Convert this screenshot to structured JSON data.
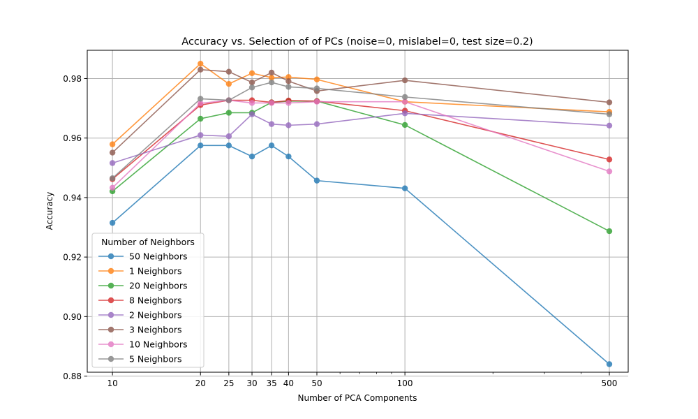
{
  "chart_data": {
    "type": "line",
    "title": "Accuracy vs. Selection of of PCs (noise=0, mislabel=0, test size=0.2)",
    "xlabel": "Number of PCA Components",
    "ylabel": "Accuracy",
    "x_scale": "log",
    "xlim": [
      8.2,
      580
    ],
    "ylim": [
      0.8813,
      0.9895
    ],
    "x_ticks": [
      10,
      20,
      25,
      30,
      35,
      40,
      50,
      100,
      500
    ],
    "x_tick_labels": [
      "10",
      "20",
      "25",
      "30",
      "35",
      "40",
      "50",
      "100",
      "500"
    ],
    "y_ticks": [
      0.88,
      0.9,
      0.92,
      0.94,
      0.96,
      0.98
    ],
    "y_tick_labels": [
      "0.88",
      "0.90",
      "0.92",
      "0.94",
      "0.96",
      "0.98"
    ],
    "grid": true,
    "legend_title": "Number of Neighbors",
    "legend_position": "lower-left",
    "x": [
      10,
      20,
      25,
      30,
      35,
      40,
      50,
      100,
      500
    ],
    "series": [
      {
        "name": "50 Neighbors",
        "color": "#1f77b4",
        "values": [
          0.9315,
          0.9575,
          0.9575,
          0.9538,
          0.9575,
          0.9538,
          0.9457,
          0.9431,
          0.884
        ]
      },
      {
        "name": "1 Neighbors",
        "color": "#ff7f0e",
        "values": [
          0.9579,
          0.985,
          0.9782,
          0.9818,
          0.9803,
          0.9805,
          0.9797,
          0.9722,
          0.9688
        ]
      },
      {
        "name": "20 Neighbors",
        "color": "#2ca02c",
        "values": [
          0.9421,
          0.9665,
          0.9685,
          0.9685,
          0.972,
          0.9724,
          0.9724,
          0.9644,
          0.9287
        ]
      },
      {
        "name": "8 Neighbors",
        "color": "#d62728",
        "values": [
          0.9462,
          0.9711,
          0.9727,
          0.9727,
          0.972,
          0.9726,
          0.9724,
          0.9692,
          0.9528
        ]
      },
      {
        "name": "2 Neighbors",
        "color": "#9467bd",
        "values": [
          0.9516,
          0.961,
          0.9606,
          0.968,
          0.9647,
          0.9643,
          0.9647,
          0.9683,
          0.9642
        ]
      },
      {
        "name": "3 Neighbors",
        "color": "#8c564b",
        "values": [
          0.9551,
          0.983,
          0.9823,
          0.9787,
          0.982,
          0.9791,
          0.9758,
          0.9794,
          0.972
        ]
      },
      {
        "name": "10 Neighbors",
        "color": "#e377c2",
        "values": [
          0.9433,
          0.9717,
          0.9727,
          0.9718,
          0.9718,
          0.9718,
          0.9722,
          0.9722,
          0.9488
        ]
      },
      {
        "name": "5 Neighbors",
        "color": "#7f7f7f",
        "values": [
          0.9465,
          0.9732,
          0.9727,
          0.977,
          0.9787,
          0.9772,
          0.9767,
          0.9738,
          0.968
        ]
      }
    ]
  }
}
